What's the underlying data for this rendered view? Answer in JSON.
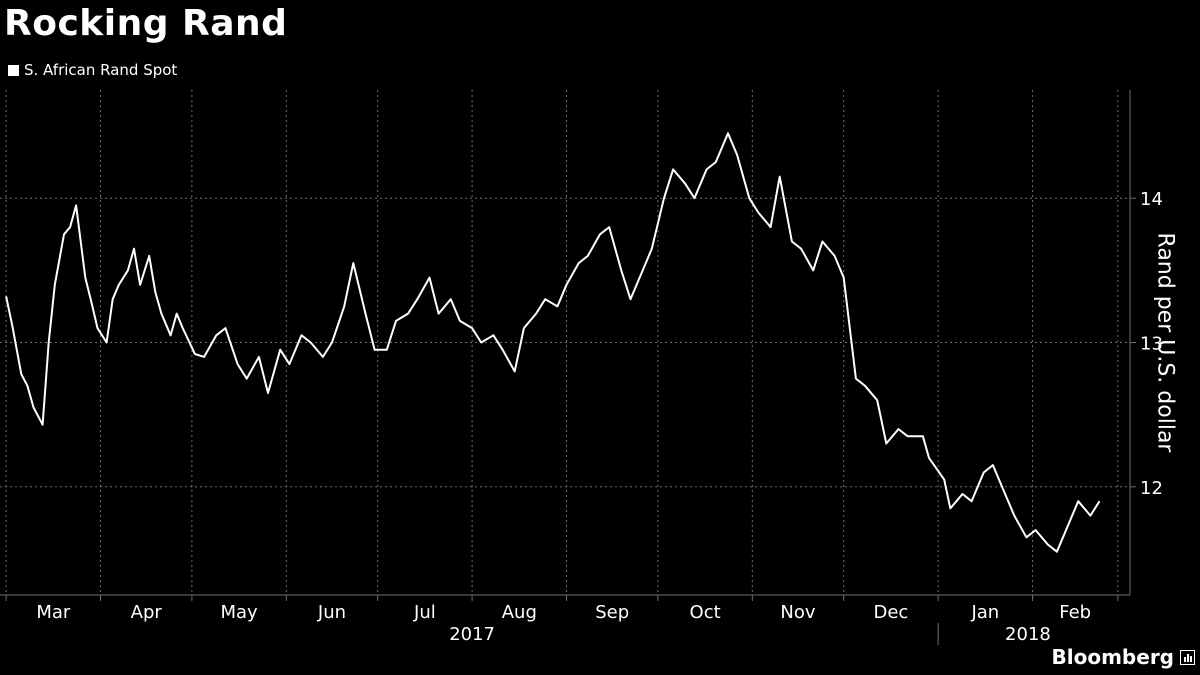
{
  "title": "Rocking Rand",
  "legend_label": "S. African Rand Spot",
  "brand": "Bloomberg",
  "colors": {
    "background": "#000000",
    "line": "#ffffff",
    "grid": "#6e6e6e"
  },
  "chart_data": {
    "type": "line",
    "title": "Rocking Rand",
    "ylabel": "Rand per U.S. dollar",
    "xlabel": "",
    "ylim": [
      11.25,
      14.75
    ],
    "yticks": [
      12,
      13,
      14
    ],
    "grid": true,
    "legend_position": "top-left",
    "y_axis_side": "right",
    "month_ticks": [
      "Mar",
      "Apr",
      "May",
      "Jun",
      "Jul",
      "Aug",
      "Sep",
      "Oct",
      "Nov",
      "Dec",
      "Jan",
      "Feb"
    ],
    "year_labels": [
      "2017",
      "2018"
    ],
    "series": [
      {
        "name": "S. African Rand Spot",
        "x": [
          "2017-03-01",
          "2017-03-03",
          "2017-03-06",
          "2017-03-08",
          "2017-03-10",
          "2017-03-13",
          "2017-03-15",
          "2017-03-17",
          "2017-03-20",
          "2017-03-22",
          "2017-03-24",
          "2017-03-27",
          "2017-03-29",
          "2017-03-31",
          "2017-04-03",
          "2017-04-05",
          "2017-04-07",
          "2017-04-10",
          "2017-04-12",
          "2017-04-14",
          "2017-04-17",
          "2017-04-19",
          "2017-04-21",
          "2017-04-24",
          "2017-04-26",
          "2017-04-28",
          "2017-05-02",
          "2017-05-05",
          "2017-05-09",
          "2017-05-12",
          "2017-05-16",
          "2017-05-19",
          "2017-05-23",
          "2017-05-26",
          "2017-05-30",
          "2017-06-02",
          "2017-06-06",
          "2017-06-09",
          "2017-06-13",
          "2017-06-16",
          "2017-06-20",
          "2017-06-23",
          "2017-06-27",
          "2017-06-30",
          "2017-07-04",
          "2017-07-07",
          "2017-07-11",
          "2017-07-14",
          "2017-07-18",
          "2017-07-21",
          "2017-07-25",
          "2017-07-28",
          "2017-08-01",
          "2017-08-04",
          "2017-08-08",
          "2017-08-11",
          "2017-08-15",
          "2017-08-18",
          "2017-08-22",
          "2017-08-25",
          "2017-08-29",
          "2017-09-01",
          "2017-09-05",
          "2017-09-08",
          "2017-09-12",
          "2017-09-15",
          "2017-09-19",
          "2017-09-22",
          "2017-09-26",
          "2017-09-29",
          "2017-10-03",
          "2017-10-06",
          "2017-10-10",
          "2017-10-13",
          "2017-10-17",
          "2017-10-20",
          "2017-10-24",
          "2017-10-27",
          "2017-10-31",
          "2017-11-03",
          "2017-11-07",
          "2017-11-10",
          "2017-11-14",
          "2017-11-17",
          "2017-11-21",
          "2017-11-24",
          "2017-11-28",
          "2017-12-01",
          "2017-12-05",
          "2017-12-08",
          "2017-12-12",
          "2017-12-15",
          "2017-12-19",
          "2017-12-22",
          "2017-12-27",
          "2017-12-29",
          "2018-01-03",
          "2018-01-05",
          "2018-01-09",
          "2018-01-12",
          "2018-01-16",
          "2018-01-19",
          "2018-01-23",
          "2018-01-26",
          "2018-01-30",
          "2018-02-02",
          "2018-02-06",
          "2018-02-09",
          "2018-02-13",
          "2018-02-16",
          "2018-02-20",
          "2018-02-23"
        ],
        "values": [
          13.32,
          13.12,
          12.78,
          12.7,
          12.55,
          12.43,
          13.0,
          13.4,
          13.75,
          13.8,
          13.95,
          13.45,
          13.28,
          13.1,
          13.0,
          13.3,
          13.4,
          13.5,
          13.65,
          13.4,
          13.6,
          13.35,
          13.2,
          13.05,
          13.2,
          13.1,
          12.92,
          12.9,
          13.05,
          13.1,
          12.85,
          12.75,
          12.9,
          12.65,
          12.95,
          12.85,
          13.05,
          13.0,
          12.9,
          13.0,
          13.25,
          13.55,
          13.2,
          12.95,
          12.95,
          13.15,
          13.2,
          13.3,
          13.45,
          13.2,
          13.3,
          13.15,
          13.1,
          13.0,
          13.05,
          12.95,
          12.8,
          13.1,
          13.2,
          13.3,
          13.25,
          13.4,
          13.55,
          13.6,
          13.75,
          13.8,
          13.5,
          13.3,
          13.5,
          13.65,
          14.0,
          14.2,
          14.1,
          14.0,
          14.2,
          14.25,
          14.45,
          14.3,
          14.0,
          13.9,
          13.8,
          14.15,
          13.7,
          13.65,
          13.5,
          13.7,
          13.6,
          13.45,
          12.75,
          12.7,
          12.6,
          12.3,
          12.4,
          12.35,
          12.35,
          12.2,
          12.05,
          11.85,
          11.95,
          11.9,
          12.1,
          12.15,
          11.95,
          11.8,
          11.65,
          11.7,
          11.6,
          11.55,
          11.75,
          11.9,
          11.8,
          11.9
        ]
      }
    ]
  }
}
